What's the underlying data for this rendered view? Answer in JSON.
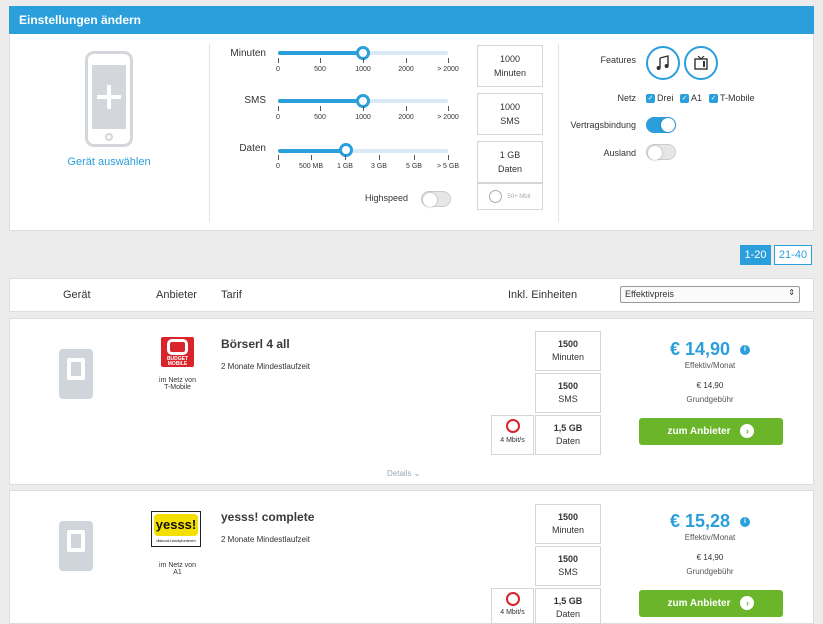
{
  "settings": {
    "title": "Einstellungen ändern",
    "device_select": "Gerät auswählen",
    "sliders": [
      {
        "label": "Minuten",
        "ticks": [
          "0",
          "500",
          "1000",
          "2000",
          "> 2000"
        ],
        "value_fraction": 0.5,
        "box_value": "1000",
        "box_unit": "Minuten"
      },
      {
        "label": "SMS",
        "ticks": [
          "0",
          "500",
          "1000",
          "2000",
          "> 2000"
        ],
        "value_fraction": 0.5,
        "box_value": "1000",
        "box_unit": "SMS"
      },
      {
        "label": "Daten",
        "ticks": [
          "0",
          "500 MB",
          "1 GB",
          "3 GB",
          "5 GB",
          "> 5 GB"
        ],
        "value_fraction": 0.4,
        "box_value": "1 GB",
        "box_unit": "Daten"
      }
    ],
    "speed_label": "50+ Mbit",
    "highspeed_label": "Highspeed",
    "features_label": "Features",
    "netz_label": "Netz",
    "netz_options": [
      "Drei",
      "A1",
      "T-Mobile"
    ],
    "vertragsbindung_label": "Vertragsbindung",
    "ausland_label": "Ausland"
  },
  "pagination": {
    "page1": "1-20",
    "page2": "21-40"
  },
  "table_header": {
    "geraet": "Gerät",
    "anbieter": "Anbieter",
    "tarif": "Tarif",
    "einheiten": "Inkl. Einheiten",
    "sort_value": "Effektivpreis"
  },
  "offers": [
    {
      "logo_line1": "BUDGET",
      "logo_line2": "MOBILE",
      "net_line1": "im Netz von",
      "net_line2": "T-Mobile",
      "name": "Börserl 4 all",
      "min_term": "2 Monate Mindestlaufzeit",
      "minutes": "1500",
      "minutes_unit": "Minuten",
      "sms": "1500",
      "sms_unit": "SMS",
      "data": "1,5 GB",
      "data_unit": "Daten",
      "speed": "4 Mbit/s",
      "price": "€ 14,90",
      "price_label": "Effektiv/Monat",
      "base_fee": "€ 14,90",
      "base_fee_label": "Grundgebühr",
      "button": "zum Anbieter",
      "details": "Details"
    },
    {
      "logo_line1": "yesss!",
      "logo_line2": "diskont-handyfonieren",
      "net_line1": "im Netz von",
      "net_line2": "A1",
      "name": "yesss! complete",
      "min_term": "2 Monate Mindestlaufzeit",
      "minutes": "1500",
      "minutes_unit": "Minuten",
      "sms": "1500",
      "sms_unit": "SMS",
      "data": "1,5 GB",
      "data_unit": "Daten",
      "speed": "4 Mbit/s",
      "price": "€ 15,28",
      "price_label": "Effektiv/Monat",
      "base_fee": "€ 14,90",
      "base_fee_label": "Grundgebühr",
      "button": "zum Anbieter"
    }
  ],
  "colors": {
    "accent": "#2a9fdb",
    "button_green": "#6bb52b",
    "logo_red": "#d8242a",
    "logo_yellow": "#f4e000"
  }
}
